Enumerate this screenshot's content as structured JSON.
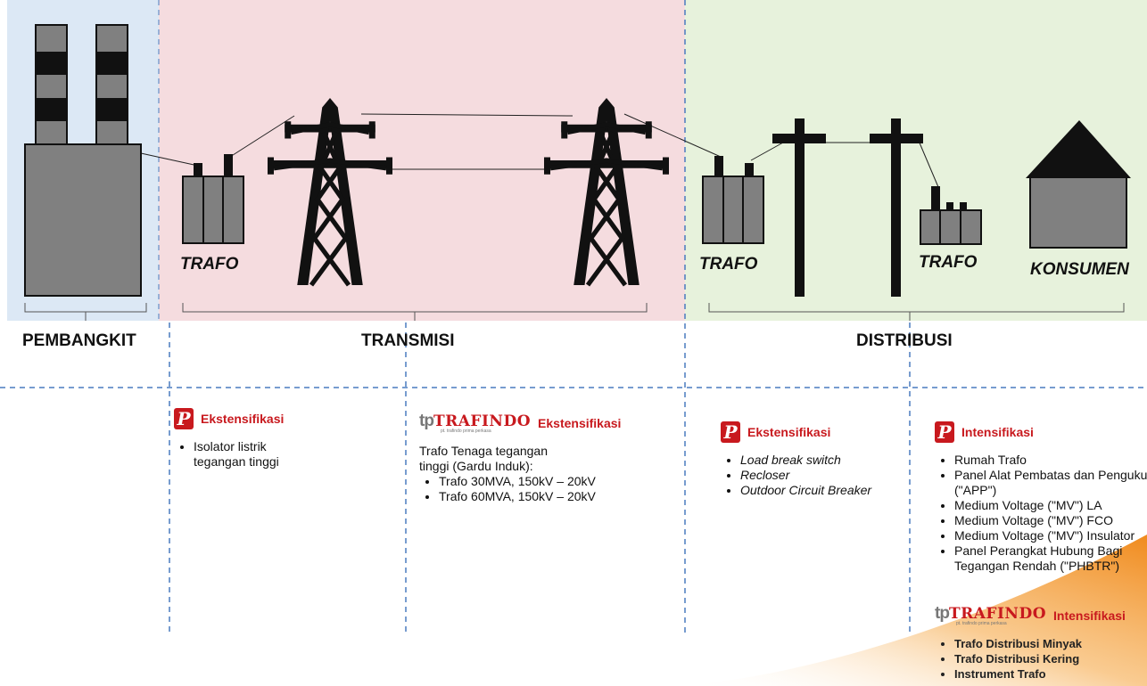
{
  "stages": [
    "PEMBANGKIT",
    "TRANSMISI",
    "DISTRIBUSI"
  ],
  "icon_labels": [
    "TRAFO",
    "TRAFO",
    "TRAFO",
    "KONSUMEN"
  ],
  "logo": {
    "mark": "tp",
    "brand": "TRAFINDO",
    "tagline": "pt. trafindo prima perkasa",
    "p": "P"
  },
  "columns": [
    {
      "logo": "p",
      "heading": "Ekstensifikasi",
      "items": [
        "Isolator listrik tegangan tinggi"
      ]
    },
    {
      "logo": "trafindo",
      "heading": "Ekstensifikasi",
      "intro": "Trafo Tenaga tegangan tinggi (Gardu Induk):",
      "items": [
        "Trafo 30MVA, 150kV – 20kV",
        "Trafo 60MVA, 150kV – 20kV"
      ]
    },
    {
      "logo": "p",
      "heading": "Ekstensifikasi",
      "items": [
        "Load break switch",
        "Recloser",
        "Outdoor Circuit Breaker"
      ]
    },
    {
      "logo": "p",
      "heading": "Intensifikasi",
      "items": [
        "Rumah Trafo",
        "Panel Alat Pembatas dan Pengukur (\"APP\")",
        "Medium Voltage (\"MV\") LA",
        "Medium Voltage (\"MV\") FCO",
        "Medium Voltage (\"MV\") Insulator",
        "Panel Perangkat Hubung Bagi Tegangan Rendah (\"PHBTR\")"
      ]
    },
    {
      "logo": "trafindo",
      "heading": "Intensifikasi",
      "items": [
        "Trafo Distribusi Minyak",
        "Trafo Distribusi Kering",
        "Instrument Trafo"
      ]
    }
  ]
}
